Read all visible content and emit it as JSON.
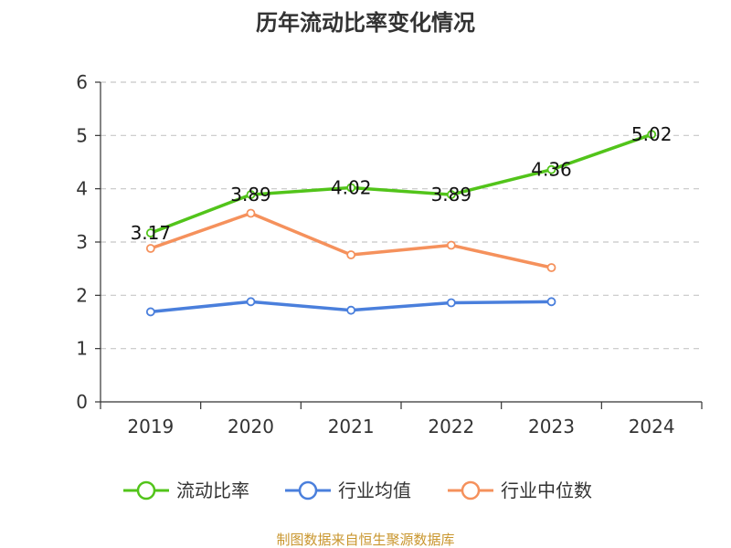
{
  "chart_data": {
    "type": "line",
    "title": "历年流动比率变化情况",
    "categories": [
      "2019",
      "2020",
      "2021",
      "2022",
      "2023",
      "2024"
    ],
    "ylim": [
      0,
      6
    ],
    "yticks": [
      "0",
      "1",
      "2",
      "3",
      "4",
      "5",
      "6"
    ],
    "grid": true,
    "legend_position": "bottom",
    "series": [
      {
        "name": "流动比率",
        "color": "#52c41a",
        "values": [
          3.17,
          3.89,
          4.02,
          3.89,
          4.36,
          5.02
        ],
        "labels": [
          "3.17",
          "3.89",
          "4.02",
          "3.89",
          "4.36",
          "5.02"
        ]
      },
      {
        "name": "行业均值",
        "color": "#4a7fdc",
        "values": [
          1.69,
          1.88,
          1.72,
          1.86,
          1.88,
          null
        ]
      },
      {
        "name": "行业中位数",
        "color": "#f5915c",
        "values": [
          2.88,
          3.54,
          2.76,
          2.94,
          2.52,
          null
        ]
      }
    ]
  },
  "footer": {
    "source": "制图数据来自恒生聚源数据库",
    "source_color": "#c9962e"
  }
}
